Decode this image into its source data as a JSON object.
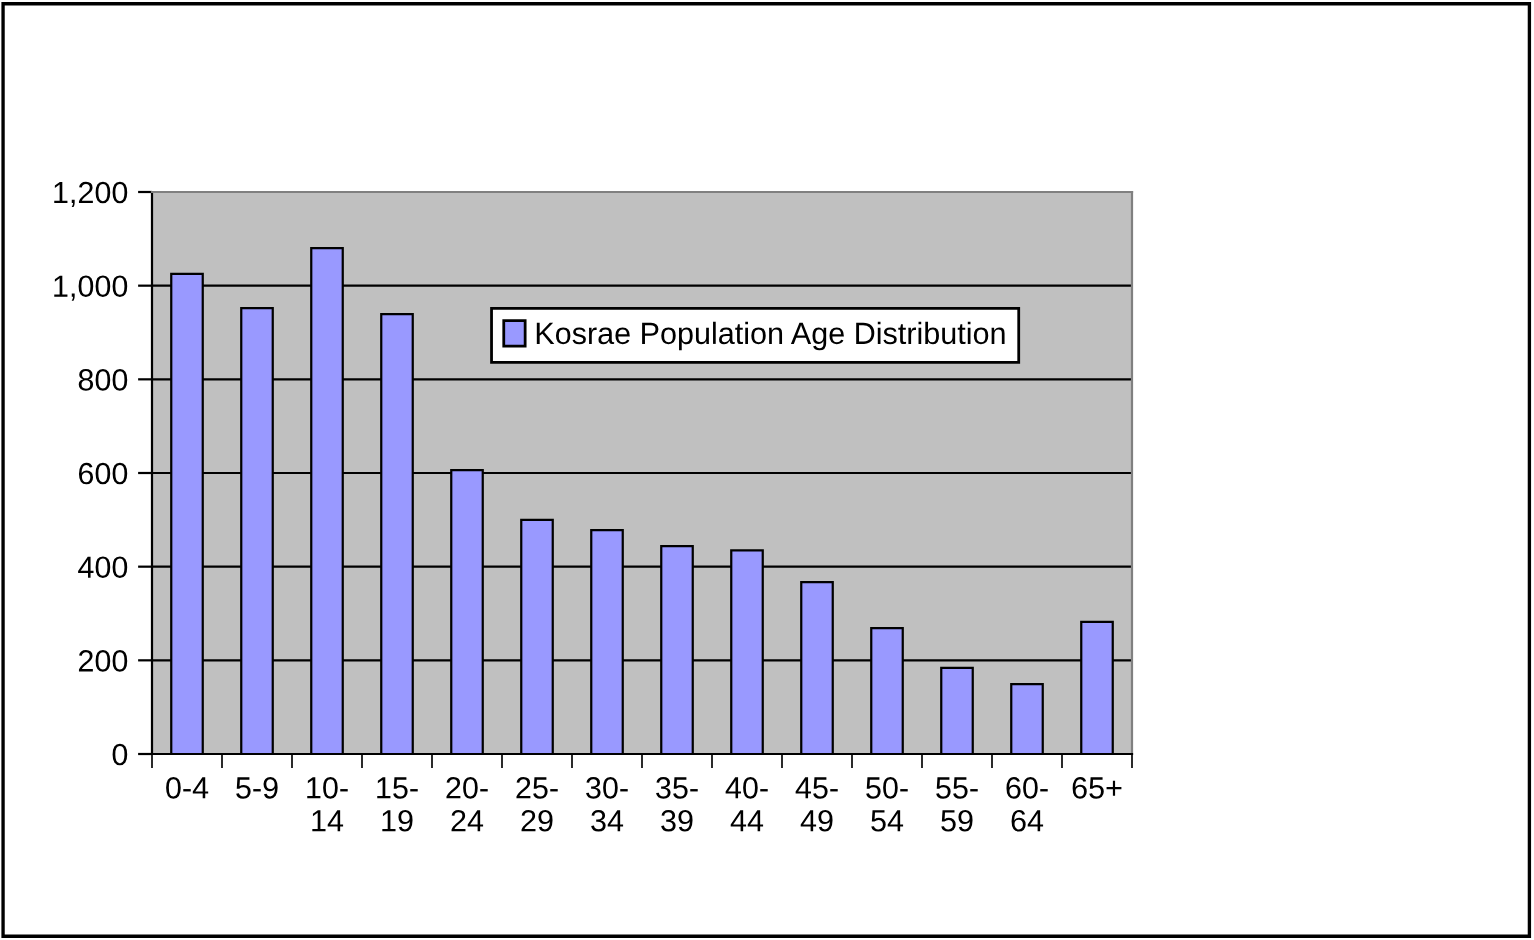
{
  "chart_data": {
    "type": "bar",
    "categories": [
      "0-4",
      "5-9",
      "10-14",
      "15-19",
      "20-24",
      "25-29",
      "30-34",
      "35-39",
      "40-44",
      "45-49",
      "50-54",
      "55-59",
      "60-64",
      "65+"
    ],
    "series": [
      {
        "name": "Kosrae Population Age Distribution",
        "color": "#9999ff",
        "values": [
          1025,
          952,
          1080,
          939,
          606,
          500,
          478,
          444,
          435,
          367,
          269,
          184,
          149,
          282
        ]
      }
    ],
    "ylim": [
      0,
      1200
    ],
    "yticks": [
      0,
      {
        "value": 200,
        "label": "200"
      },
      {
        "value": 400,
        "label": "400"
      },
      {
        "value": 600,
        "label": "600"
      },
      {
        "value": 800,
        "label": "800"
      },
      {
        "value": 1000,
        "label": "1,000"
      },
      {
        "value": 1200,
        "label": "1,200"
      }
    ],
    "grid": "y",
    "legend": "top right"
  }
}
